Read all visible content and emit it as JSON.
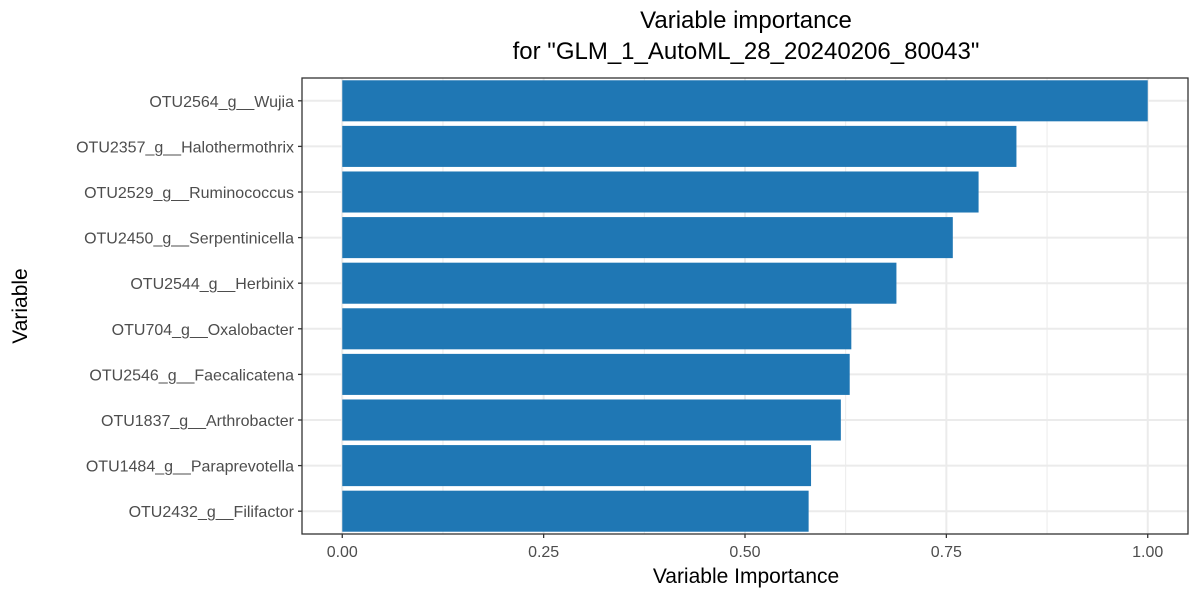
{
  "chart_data": {
    "type": "bar",
    "orientation": "horizontal",
    "title_lines": [
      "Variable importance",
      "for \"GLM_1_AutoML_28_20240206_80043\""
    ],
    "xlabel": "Variable Importance",
    "ylabel": "Variable",
    "xlim": [
      -0.05,
      1.05
    ],
    "x_ticks": [
      0.0,
      0.25,
      0.5,
      0.75,
      1.0
    ],
    "x_tick_labels": [
      "0.00",
      "0.25",
      "0.50",
      "0.75",
      "1.00"
    ],
    "grid": true,
    "colors": {
      "bar": "#1f77b4",
      "panel_border": "#333333",
      "grid": "#ebebeb"
    },
    "categories": [
      "OTU2564_g__Wujia",
      "OTU2357_g__Halothermothrix",
      "OTU2529_g__Ruminococcus",
      "OTU2450_g__Serpentinicella",
      "OTU2544_g__Herbinix",
      "OTU704_g__Oxalobacter",
      "OTU2546_g__Faecalicatena",
      "OTU1837_g__Arthrobacter",
      "OTU1484_g__Paraprevotella",
      "OTU2432_g__Filifactor"
    ],
    "values": [
      1.0,
      0.837,
      0.79,
      0.758,
      0.688,
      0.632,
      0.63,
      0.619,
      0.582,
      0.579
    ]
  }
}
